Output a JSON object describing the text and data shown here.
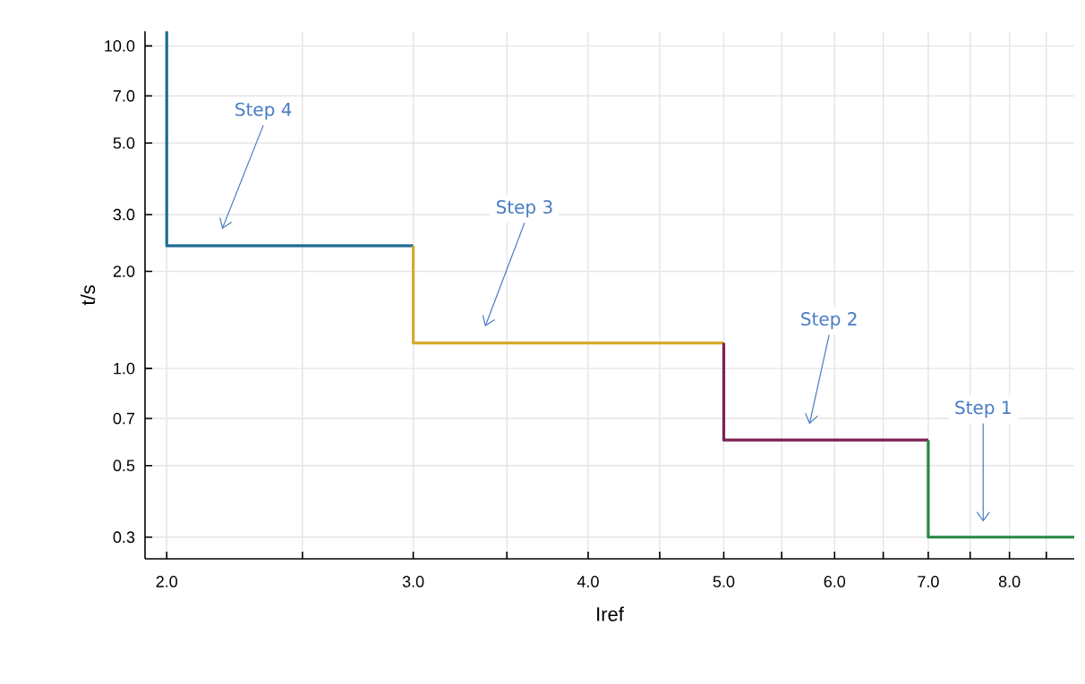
{
  "chart_data": {
    "type": "line",
    "log": "xy",
    "xlabel": "Iref",
    "ylabel": "t/s",
    "grid": true,
    "xlim": [
      1.93,
      8.9
    ],
    "ylim": [
      0.257,
      11.1
    ],
    "xticks": [
      {
        "value": 2,
        "label": "2.0"
      },
      {
        "value": 2.5,
        "label": null
      },
      {
        "value": 3,
        "label": "3.0"
      },
      {
        "value": 3.5,
        "label": null
      },
      {
        "value": 4,
        "label": "4.0"
      },
      {
        "value": 4.5,
        "label": null
      },
      {
        "value": 5,
        "label": "5.0"
      },
      {
        "value": 5.5,
        "label": null
      },
      {
        "value": 6,
        "label": "6.0"
      },
      {
        "value": 6.5,
        "label": null
      },
      {
        "value": 7,
        "label": "7.0"
      },
      {
        "value": 7.5,
        "label": null
      },
      {
        "value": 8,
        "label": "8.0"
      },
      {
        "value": 8.5,
        "label": null
      }
    ],
    "yticks": [
      {
        "value": 0.3,
        "label": "0.3"
      },
      {
        "value": 0.5,
        "label": "0.5"
      },
      {
        "value": 0.7,
        "label": "0.7"
      },
      {
        "value": 1,
        "label": "1.0"
      },
      {
        "value": 2,
        "label": "2.0"
      },
      {
        "value": 3,
        "label": "3.0"
      },
      {
        "value": 5,
        "label": "5.0"
      },
      {
        "value": 7,
        "label": "7.0"
      },
      {
        "value": 10,
        "label": "10.0"
      }
    ],
    "series": [
      {
        "color": "#1f6b94",
        "x": [
          2,
          2,
          3
        ],
        "values": [
          11.1,
          2.4,
          2.4
        ]
      },
      {
        "color": "#d4aa2a",
        "x": [
          3,
          3,
          5
        ],
        "values": [
          2.4,
          1.2,
          1.2
        ]
      },
      {
        "color": "#7a2152",
        "x": [
          5,
          5,
          7
        ],
        "values": [
          1.2,
          0.6,
          0.6
        ]
      },
      {
        "color": "#25883f",
        "x": [
          7,
          7,
          8.9
        ],
        "values": [
          0.6,
          0.3,
          0.3
        ]
      }
    ],
    "annotations": [
      "Step 4",
      "Step 3",
      "Step 2",
      "Step 1"
    ]
  }
}
